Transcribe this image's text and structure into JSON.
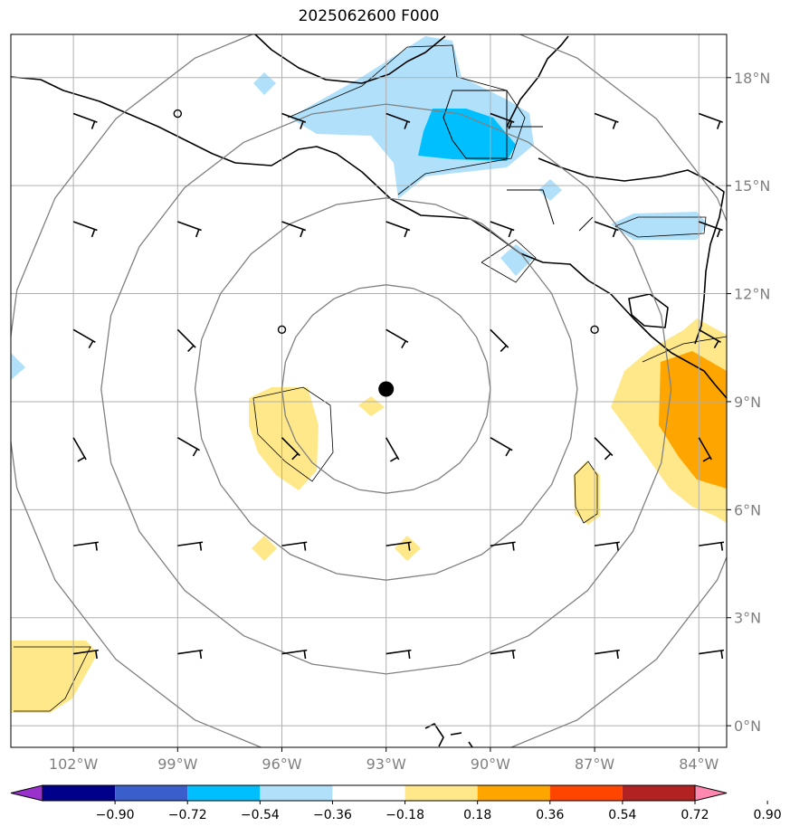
{
  "title": "2025062600 F000",
  "map": {
    "lon_range": [
      -103.8,
      -83.2
    ],
    "lat_range": [
      -0.6,
      19.2
    ],
    "lon_ticks": [
      {
        "value": -102,
        "label": "102°W"
      },
      {
        "value": -99,
        "label": "99°W"
      },
      {
        "value": -96,
        "label": "96°W"
      },
      {
        "value": -93,
        "label": "93°W"
      },
      {
        "value": -90,
        "label": "90°W"
      },
      {
        "value": -87,
        "label": "87°W"
      },
      {
        "value": -84,
        "label": "84°W"
      }
    ],
    "lat_ticks": [
      {
        "value": 0,
        "label": "0°N"
      },
      {
        "value": 3,
        "label": "3°N"
      },
      {
        "value": 6,
        "label": "6°N"
      },
      {
        "value": 9,
        "label": "9°N"
      },
      {
        "value": 12,
        "label": "12°N"
      },
      {
        "value": 15,
        "label": "15°N"
      },
      {
        "value": 18,
        "label": "18°N"
      }
    ],
    "gridlines": true,
    "storm_center": {
      "lon": -93.0,
      "lat": 9.35
    },
    "range_rings_deg": [
      3,
      5.5,
      8.2,
      11
    ]
  },
  "colorbar": {
    "labels": [
      "−0.90",
      "−0.72",
      "−0.54",
      "−0.36",
      "−0.18",
      "0.18",
      "0.36",
      "0.54",
      "0.72",
      "0.90"
    ],
    "colors": [
      "#9932cc",
      "#00008b",
      "#3a5fcd",
      "#00bfff",
      "#b0e0fa",
      "#ffffff",
      "#ffe88a",
      "#ffa500",
      "#ff4500",
      "#b22222",
      "#ff88b0"
    ]
  },
  "colors": {
    "coast": "#000000",
    "grid": "#b0b0b0",
    "ring": "#808080"
  }
}
